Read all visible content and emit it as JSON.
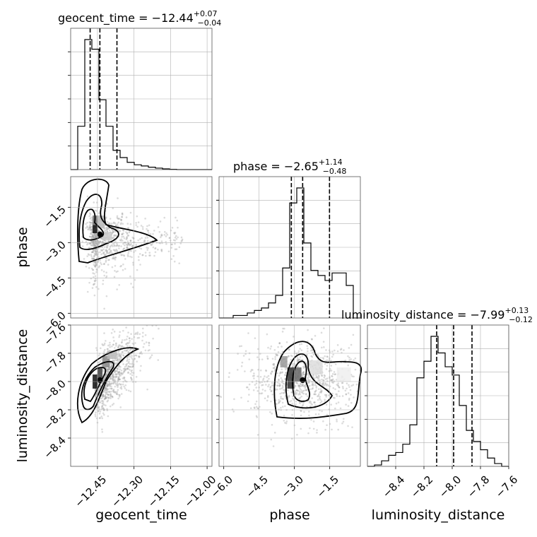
{
  "chart_data": {
    "type": "corner",
    "parameters": [
      "geocent_time",
      "phase",
      "luminosity_distance"
    ],
    "titles": [
      {
        "param": "geocent_time",
        "prefix": "geocent_time = −12.44",
        "sup": "+0.07",
        "sub": "−0.04"
      },
      {
        "param": "phase",
        "prefix": "phase = −2.65",
        "sup": "+1.14",
        "sub": "−0.48"
      },
      {
        "param": "luminosity_distance",
        "prefix": "luminosity_distance = −7.99",
        "sup": "+0.13",
        "sub": "−0.12"
      }
    ],
    "ranges": {
      "geocent_time": [
        -12.56,
        -11.98
      ],
      "phase": [
        -6.2,
        -0.2
      ],
      "luminosity_distance": [
        -8.6,
        -7.6
      ]
    },
    "ticks": {
      "geocent_time": [
        -12.45,
        -12.3,
        -12.15,
        -12.0
      ],
      "phase": [
        -6.0,
        -4.5,
        -3.0,
        -1.5
      ],
      "luminosity_distance": [
        -8.4,
        -8.2,
        -8.0,
        -7.8,
        -7.6
      ]
    },
    "tick_labels": {
      "geocent_time": [
        "−12.45",
        "−12.30",
        "−12.15",
        "−12.00"
      ],
      "phase": [
        "−6.0",
        "−4.5",
        "−3.0",
        "−1.5"
      ],
      "luminosity_distance": [
        "−8.4",
        "−8.2",
        "−8.0",
        "−7.8",
        "−7.6"
      ]
    },
    "quantiles": {
      "geocent_time": [
        -12.48,
        -12.44,
        -12.37
      ],
      "phase": [
        -3.13,
        -2.65,
        -1.51
      ],
      "luminosity_distance": [
        -8.11,
        -7.99,
        -7.86
      ]
    },
    "histograms": {
      "geocent_time": {
        "edges_start": -12.56,
        "bin_width": 0.029,
        "counts": [
          0,
          18,
          54,
          50,
          29,
          18,
          8,
          5,
          3,
          2,
          1.5,
          1,
          0.6,
          0.3,
          0.1,
          0,
          0,
          0,
          0,
          0
        ]
      },
      "phase": {
        "edges_start": -6.2,
        "bin_width": 0.3,
        "counts": [
          0,
          0,
          1,
          1,
          2,
          3,
          4,
          6,
          9,
          20,
          46,
          52,
          30,
          19,
          17,
          15,
          18,
          18,
          13,
          0
        ]
      },
      "luminosity_distance": {
        "edges_start": -8.6,
        "bin_width": 0.05,
        "counts": [
          0,
          0.5,
          2,
          4,
          5,
          8,
          15,
          32,
          38,
          47,
          41,
          36,
          33,
          22,
          13,
          9,
          6,
          3,
          1,
          0
        ]
      }
    },
    "grid": true,
    "contour_levels": 3
  }
}
